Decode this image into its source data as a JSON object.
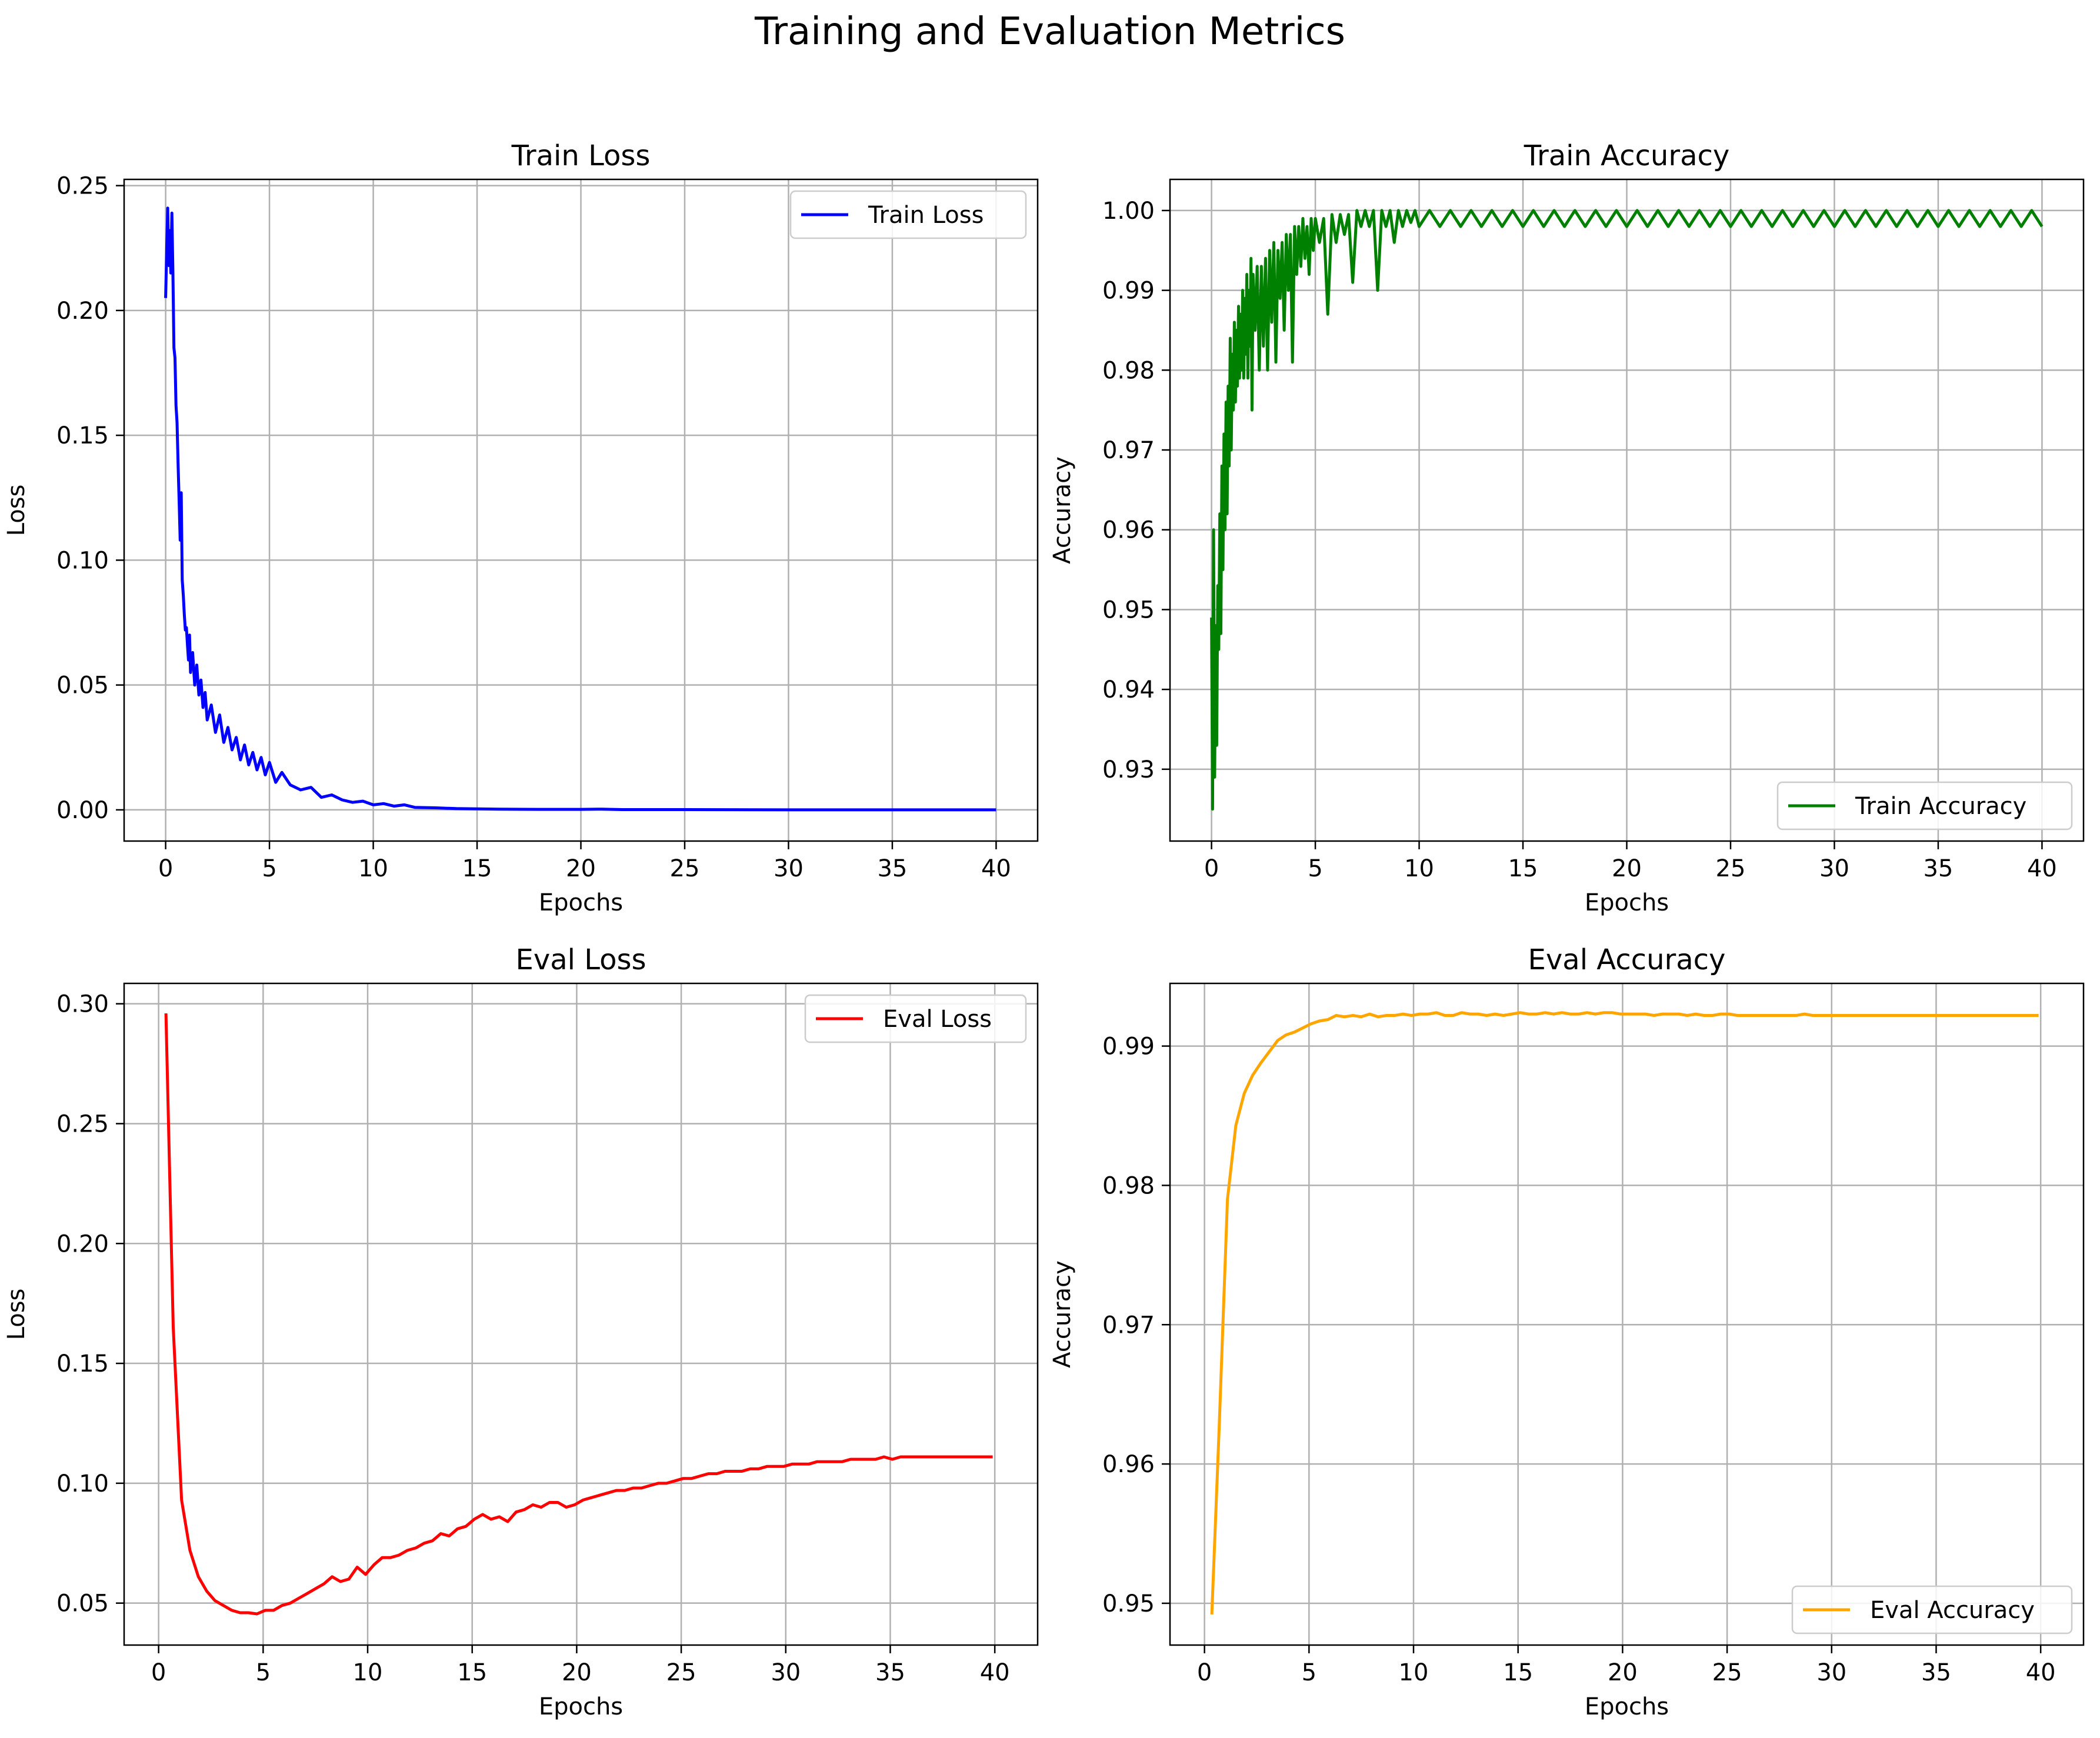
{
  "figure": {
    "suptitle": "Training and Evaluation Metrics"
  },
  "chart_data": [
    {
      "id": "train_loss",
      "type": "line",
      "title": "Train Loss",
      "xlabel": "Epochs",
      "ylabel": "Loss",
      "xlim": [
        -2,
        42
      ],
      "ylim": [
        -0.0125,
        0.2525
      ],
      "xticks": [
        0,
        5,
        10,
        15,
        20,
        25,
        30,
        35,
        40
      ],
      "yticks": [
        0.0,
        0.05,
        0.1,
        0.15,
        0.2,
        0.25
      ],
      "xtick_labels": [
        "0",
        "5",
        "10",
        "15",
        "20",
        "25",
        "30",
        "35",
        "40"
      ],
      "ytick_labels": [
        "0.00",
        "0.05",
        "0.10",
        "0.15",
        "0.20",
        "0.25"
      ],
      "grid": true,
      "legend_position": "top-right",
      "series": [
        {
          "name": "Train Loss",
          "color": "#0000ff",
          "x": [
            0,
            0.05,
            0.1,
            0.15,
            0.2,
            0.25,
            0.3,
            0.35,
            0.4,
            0.45,
            0.5,
            0.55,
            0.6,
            0.65,
            0.7,
            0.75,
            0.8,
            0.85,
            0.9,
            0.95,
            1.0,
            1.05,
            1.1,
            1.15,
            1.2,
            1.3,
            1.4,
            1.5,
            1.6,
            1.7,
            1.8,
            1.9,
            2.0,
            2.2,
            2.4,
            2.6,
            2.8,
            3.0,
            3.2,
            3.4,
            3.6,
            3.8,
            4.0,
            4.2,
            4.4,
            4.6,
            4.8,
            5.0,
            5.3,
            5.6,
            6.0,
            6.5,
            7.0,
            7.5,
            8.0,
            8.5,
            9.0,
            9.5,
            10.0,
            10.5,
            11.0,
            11.5,
            12.0,
            13.0,
            14.0,
            15.0,
            16.0,
            18.0,
            20.0,
            21.0,
            22.0,
            25.0,
            30.0,
            35.0,
            40.0
          ],
          "values": [
            0.205,
            0.225,
            0.241,
            0.218,
            0.232,
            0.215,
            0.239,
            0.216,
            0.185,
            0.181,
            0.162,
            0.155,
            0.138,
            0.124,
            0.108,
            0.127,
            0.092,
            0.086,
            0.078,
            0.072,
            0.073,
            0.066,
            0.06,
            0.07,
            0.055,
            0.063,
            0.05,
            0.058,
            0.046,
            0.052,
            0.041,
            0.047,
            0.036,
            0.042,
            0.031,
            0.038,
            0.027,
            0.033,
            0.024,
            0.029,
            0.02,
            0.026,
            0.018,
            0.023,
            0.016,
            0.021,
            0.014,
            0.019,
            0.011,
            0.015,
            0.01,
            0.008,
            0.009,
            0.005,
            0.006,
            0.004,
            0.003,
            0.0035,
            0.002,
            0.0025,
            0.0015,
            0.002,
            0.001,
            0.0008,
            0.0005,
            0.0004,
            0.0003,
            0.0002,
            0.0002,
            0.0003,
            0.0001,
            0.0001,
            0.0,
            0.0,
            0.0
          ]
        }
      ]
    },
    {
      "id": "train_accuracy",
      "type": "line",
      "title": "Train Accuracy",
      "xlabel": "Epochs",
      "ylabel": "Accuracy",
      "xlim": [
        -2,
        42
      ],
      "ylim": [
        0.921,
        1.0039
      ],
      "xticks": [
        0,
        5,
        10,
        15,
        20,
        25,
        30,
        35,
        40
      ],
      "yticks": [
        0.93,
        0.94,
        0.95,
        0.96,
        0.97,
        0.98,
        0.99,
        1.0
      ],
      "xtick_labels": [
        "0",
        "5",
        "10",
        "15",
        "20",
        "25",
        "30",
        "35",
        "40"
      ],
      "ytick_labels": [
        "0.93",
        "0.94",
        "0.95",
        "0.96",
        "0.97",
        "0.98",
        "0.99",
        "1.00"
      ],
      "grid": true,
      "legend_position": "bottom-right",
      "series": [
        {
          "name": "Train Accuracy",
          "color": "#008000",
          "x": [
            0.0,
            0.05,
            0.1,
            0.15,
            0.2,
            0.25,
            0.3,
            0.35,
            0.4,
            0.45,
            0.5,
            0.55,
            0.6,
            0.65,
            0.7,
            0.75,
            0.8,
            0.85,
            0.9,
            0.95,
            1.0,
            1.05,
            1.1,
            1.15,
            1.2,
            1.25,
            1.3,
            1.35,
            1.4,
            1.45,
            1.5,
            1.55,
            1.6,
            1.65,
            1.7,
            1.75,
            1.8,
            1.85,
            1.9,
            1.95,
            2.0,
            2.1,
            2.2,
            2.3,
            2.4,
            2.5,
            2.6,
            2.7,
            2.8,
            2.9,
            3.0,
            3.1,
            3.2,
            3.3,
            3.4,
            3.5,
            3.6,
            3.7,
            3.8,
            3.9,
            4.0,
            4.1,
            4.2,
            4.3,
            4.4,
            4.5,
            4.6,
            4.7,
            4.8,
            4.9,
            5.0,
            5.2,
            5.4,
            5.6,
            5.8,
            6.0,
            6.2,
            6.4,
            6.6,
            6.8,
            7.0,
            7.2,
            7.4,
            7.6,
            7.8,
            8.0,
            8.2,
            8.4,
            8.6,
            8.8,
            9.0,
            9.2,
            9.4,
            9.6,
            9.8,
            10.0,
            10.5,
            11.0,
            11.5,
            12.0,
            12.5,
            13.0,
            13.5,
            14.0,
            14.5,
            15.0,
            15.5,
            16.0,
            16.5,
            17.0,
            17.5,
            18.0,
            18.5,
            19.0,
            19.5,
            20.0,
            20.5,
            21.0,
            21.5,
            22.0,
            22.5,
            23.0,
            23.5,
            24.0,
            24.5,
            25.0,
            25.5,
            26.0,
            26.5,
            27.0,
            27.5,
            28.0,
            28.5,
            29.0,
            29.5,
            30.0,
            30.5,
            31.0,
            31.5,
            32.0,
            32.5,
            33.0,
            33.5,
            34.0,
            34.5,
            35.0,
            35.5,
            36.0,
            36.5,
            37.0,
            37.5,
            38.0,
            38.5,
            39.0,
            39.5,
            40.0
          ],
          "values": [
            0.949,
            0.925,
            0.96,
            0.929,
            0.948,
            0.933,
            0.953,
            0.945,
            0.962,
            0.947,
            0.968,
            0.955,
            0.972,
            0.96,
            0.976,
            0.962,
            0.978,
            0.968,
            0.984,
            0.97,
            0.982,
            0.975,
            0.986,
            0.976,
            0.985,
            0.978,
            0.988,
            0.979,
            0.987,
            0.98,
            0.99,
            0.979,
            0.989,
            0.982,
            0.992,
            0.979,
            0.99,
            0.983,
            0.994,
            0.975,
            0.992,
            0.985,
            0.993,
            0.98,
            0.993,
            0.983,
            0.994,
            0.98,
            0.995,
            0.986,
            0.996,
            0.981,
            0.995,
            0.989,
            0.996,
            0.985,
            0.997,
            0.99,
            0.997,
            0.981,
            0.998,
            0.992,
            0.998,
            0.993,
            0.999,
            0.994,
            0.998,
            0.992,
            0.999,
            0.995,
            0.999,
            0.996,
            0.999,
            0.987,
            0.9995,
            0.996,
            0.9995,
            0.997,
            0.9995,
            0.991,
            1.0,
            0.998,
            1.0,
            0.998,
            1.0,
            0.99,
            1.0,
            0.998,
            1.0,
            0.996,
            1.0,
            0.998,
            1.0,
            0.9985,
            1.0,
            0.998,
            1.0,
            0.998,
            1.0,
            0.998,
            1.0,
            0.998,
            1.0,
            0.998,
            1.0,
            0.998,
            1.0,
            0.998,
            1.0,
            0.998,
            1.0,
            0.998,
            1.0,
            0.998,
            1.0,
            0.998,
            1.0,
            0.998,
            1.0,
            0.998,
            1.0,
            0.998,
            1.0,
            0.998,
            1.0,
            0.998,
            1.0,
            0.998,
            1.0,
            0.998,
            1.0,
            0.998,
            1.0,
            0.998,
            1.0,
            0.998,
            1.0,
            0.998,
            1.0,
            0.998,
            1.0,
            0.998,
            1.0,
            0.998,
            1.0,
            0.998,
            1.0,
            0.998,
            1.0,
            0.998,
            1.0,
            0.998,
            1.0,
            0.998,
            1.0,
            0.998
          ]
        }
      ]
    },
    {
      "id": "eval_loss",
      "type": "line",
      "title": "Eval Loss",
      "xlabel": "Epochs",
      "ylabel": "Loss",
      "xlim": [
        -1.65,
        42.05
      ],
      "ylim": [
        0.0325,
        0.3085
      ],
      "xticks": [
        0,
        5,
        10,
        15,
        20,
        25,
        30,
        35,
        40
      ],
      "yticks": [
        0.05,
        0.1,
        0.15,
        0.2,
        0.25,
        0.3
      ],
      "xtick_labels": [
        "0",
        "5",
        "10",
        "15",
        "20",
        "25",
        "30",
        "35",
        "40"
      ],
      "ytick_labels": [
        "0.05",
        "0.10",
        "0.15",
        "0.20",
        "0.25",
        "0.30"
      ],
      "grid": true,
      "legend_position": "top-right",
      "series": [
        {
          "name": "Eval Loss",
          "color": "#ff0000",
          "x": [
            0.35,
            0.7,
            1.1,
            1.5,
            1.9,
            2.3,
            2.7,
            3.1,
            3.5,
            3.9,
            4.3,
            4.7,
            5.1,
            5.5,
            5.9,
            6.3,
            6.7,
            7.1,
            7.5,
            7.9,
            8.3,
            8.7,
            9.1,
            9.5,
            9.9,
            10.3,
            10.7,
            11.1,
            11.5,
            11.9,
            12.3,
            12.7,
            13.1,
            13.5,
            13.9,
            14.3,
            14.7,
            15.1,
            15.5,
            15.9,
            16.3,
            16.7,
            17.1,
            17.5,
            17.9,
            18.3,
            18.7,
            19.1,
            19.5,
            19.9,
            20.3,
            20.7,
            21.1,
            21.5,
            21.9,
            22.3,
            22.7,
            23.1,
            23.5,
            23.9,
            24.3,
            24.7,
            25.1,
            25.5,
            25.9,
            26.3,
            26.7,
            27.1,
            27.5,
            27.9,
            28.3,
            28.7,
            29.1,
            29.5,
            29.9,
            30.3,
            30.7,
            31.1,
            31.5,
            31.9,
            32.3,
            32.7,
            33.1,
            33.5,
            33.9,
            34.3,
            34.7,
            35.1,
            35.5,
            35.9,
            36.3,
            36.7,
            37.1,
            37.5,
            37.9,
            38.3,
            38.7,
            39.1,
            39.5,
            39.9
          ],
          "values": [
            0.296,
            0.165,
            0.093,
            0.072,
            0.061,
            0.055,
            0.051,
            0.049,
            0.047,
            0.046,
            0.046,
            0.0455,
            0.047,
            0.047,
            0.049,
            0.05,
            0.052,
            0.054,
            0.056,
            0.058,
            0.061,
            0.059,
            0.06,
            0.065,
            0.062,
            0.066,
            0.069,
            0.069,
            0.07,
            0.072,
            0.073,
            0.075,
            0.076,
            0.079,
            0.078,
            0.081,
            0.082,
            0.085,
            0.087,
            0.085,
            0.086,
            0.084,
            0.088,
            0.089,
            0.091,
            0.09,
            0.092,
            0.092,
            0.09,
            0.091,
            0.093,
            0.094,
            0.095,
            0.096,
            0.097,
            0.097,
            0.098,
            0.098,
            0.099,
            0.1,
            0.1,
            0.101,
            0.102,
            0.102,
            0.103,
            0.104,
            0.104,
            0.105,
            0.105,
            0.105,
            0.106,
            0.106,
            0.107,
            0.107,
            0.107,
            0.108,
            0.108,
            0.108,
            0.109,
            0.109,
            0.109,
            0.109,
            0.11,
            0.11,
            0.11,
            0.11,
            0.111,
            0.11,
            0.111,
            0.111,
            0.111,
            0.111,
            0.111,
            0.111,
            0.111,
            0.111,
            0.111,
            0.111,
            0.111,
            0.111
          ]
        }
      ]
    },
    {
      "id": "eval_accuracy",
      "type": "line",
      "title": "Eval Accuracy",
      "xlabel": "Epochs",
      "ylabel": "Accuracy",
      "xlim": [
        -1.65,
        42.05
      ],
      "ylim": [
        0.947,
        0.9945
      ],
      "xticks": [
        0,
        5,
        10,
        15,
        20,
        25,
        30,
        35,
        40
      ],
      "yticks": [
        0.95,
        0.96,
        0.97,
        0.98,
        0.99
      ],
      "xtick_labels": [
        "0",
        "5",
        "10",
        "15",
        "20",
        "25",
        "30",
        "35",
        "40"
      ],
      "ytick_labels": [
        "0.95",
        "0.96",
        "0.97",
        "0.98",
        "0.99"
      ],
      "grid": true,
      "legend_position": "bottom-right",
      "series": [
        {
          "name": "Eval Accuracy",
          "color": "#ffa500",
          "x": [
            0.35,
            0.7,
            1.1,
            1.5,
            1.9,
            2.3,
            2.7,
            3.1,
            3.5,
            3.9,
            4.3,
            4.7,
            5.1,
            5.5,
            5.9,
            6.3,
            6.7,
            7.1,
            7.5,
            7.9,
            8.3,
            8.7,
            9.1,
            9.5,
            9.9,
            10.3,
            10.7,
            11.1,
            11.5,
            11.9,
            12.3,
            12.7,
            13.1,
            13.5,
            13.9,
            14.3,
            14.7,
            15.1,
            15.5,
            15.9,
            16.3,
            16.7,
            17.1,
            17.5,
            17.9,
            18.3,
            18.7,
            19.1,
            19.5,
            19.9,
            20.3,
            20.7,
            21.1,
            21.5,
            21.9,
            22.3,
            22.7,
            23.1,
            23.5,
            23.9,
            24.3,
            24.7,
            25.1,
            25.5,
            25.9,
            26.3,
            26.7,
            27.1,
            27.5,
            27.9,
            28.3,
            28.7,
            29.1,
            29.5,
            29.9,
            30.3,
            30.7,
            31.1,
            31.5,
            31.9,
            32.3,
            32.7,
            33.1,
            33.5,
            33.9,
            34.3,
            34.7,
            35.1,
            35.5,
            35.9,
            36.3,
            36.7,
            37.1,
            37.5,
            37.9,
            38.3,
            38.7,
            39.1,
            39.5,
            39.9
          ],
          "values": [
            0.9492,
            0.9625,
            0.979,
            0.9843,
            0.9866,
            0.9879,
            0.9888,
            0.9896,
            0.9904,
            0.9908,
            0.991,
            0.9913,
            0.9916,
            0.9918,
            0.9919,
            0.9922,
            0.9921,
            0.9922,
            0.9921,
            0.9923,
            0.9921,
            0.9922,
            0.9922,
            0.9923,
            0.9922,
            0.9923,
            0.9923,
            0.9924,
            0.9922,
            0.9922,
            0.9924,
            0.9923,
            0.9923,
            0.9922,
            0.9923,
            0.9922,
            0.9923,
            0.9924,
            0.9923,
            0.9923,
            0.9924,
            0.9923,
            0.9924,
            0.9923,
            0.9923,
            0.9924,
            0.9923,
            0.9924,
            0.9924,
            0.9923,
            0.9923,
            0.9923,
            0.9923,
            0.9922,
            0.9923,
            0.9923,
            0.9923,
            0.9922,
            0.9923,
            0.9922,
            0.9922,
            0.9923,
            0.9923,
            0.9922,
            0.9922,
            0.9922,
            0.9922,
            0.9922,
            0.9922,
            0.9922,
            0.9922,
            0.9923,
            0.9922,
            0.9922,
            0.9922,
            0.9922,
            0.9922,
            0.9922,
            0.9922,
            0.9922,
            0.9922,
            0.9922,
            0.9922,
            0.9922,
            0.9922,
            0.9922,
            0.9922,
            0.9922,
            0.9922,
            0.9922,
            0.9922,
            0.9922,
            0.9922,
            0.9922,
            0.9922,
            0.9922,
            0.9922,
            0.9922,
            0.9922,
            0.9922
          ]
        }
      ]
    }
  ]
}
